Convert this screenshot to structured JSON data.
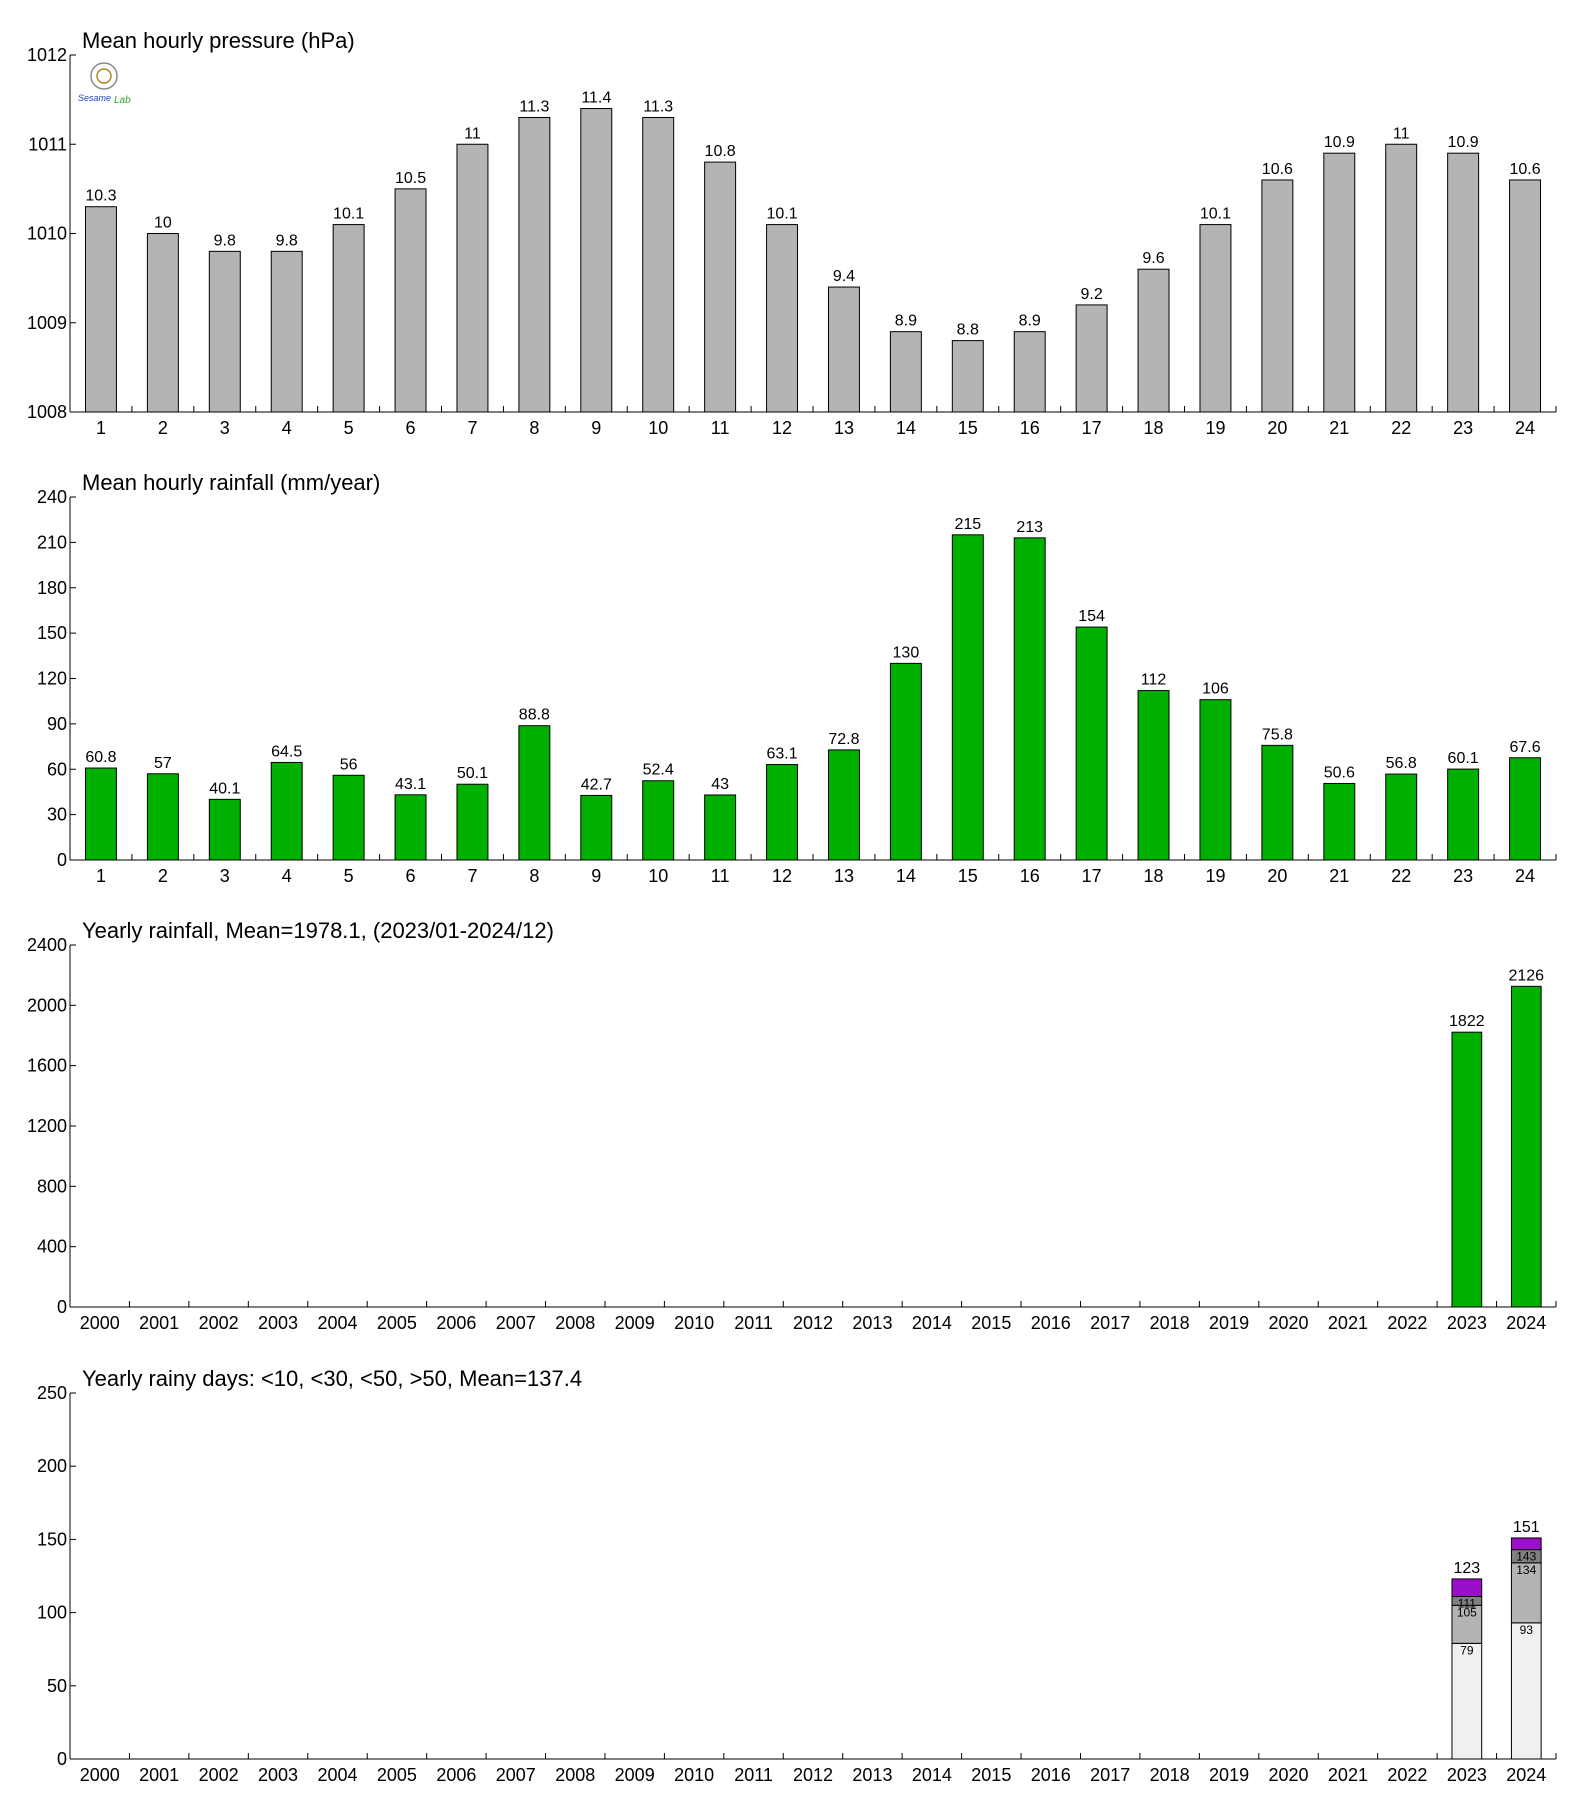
{
  "logo": {
    "text_top": "Sesame",
    "text_bottom": "Lab"
  },
  "chart_data": [
    {
      "type": "bar",
      "title": "Mean hourly pressure (hPa)",
      "categories": [
        "1",
        "2",
        "3",
        "4",
        "5",
        "6",
        "7",
        "8",
        "9",
        "10",
        "11",
        "12",
        "13",
        "14",
        "15",
        "16",
        "17",
        "18",
        "19",
        "20",
        "21",
        "22",
        "23",
        "24"
      ],
      "values": [
        1010.3,
        1010.0,
        1009.8,
        1009.8,
        1010.1,
        1010.5,
        1011.0,
        1011.3,
        1011.4,
        1011.3,
        1010.8,
        1010.1,
        1009.4,
        1008.9,
        1008.8,
        1008.9,
        1009.2,
        1009.6,
        1010.1,
        1010.6,
        1010.9,
        1011.0,
        1010.9,
        1010.6
      ],
      "data_labels": [
        "10.3",
        "10",
        "9.8",
        "9.8",
        "10.1",
        "10.5",
        "11",
        "11.3",
        "11.4",
        "11.3",
        "10.8",
        "10.1",
        "9.4",
        "8.9",
        "8.8",
        "8.9",
        "9.2",
        "9.6",
        "10.1",
        "10.6",
        "10.9",
        "11",
        "10.9",
        "10.6"
      ],
      "ylim": [
        1008,
        1012
      ],
      "yticks": [
        1008,
        1009,
        1010,
        1011,
        1012
      ],
      "color": "#b4b4b4"
    },
    {
      "type": "bar",
      "title": "Mean hourly rainfall (mm/year)",
      "categories": [
        "1",
        "2",
        "3",
        "4",
        "5",
        "6",
        "7",
        "8",
        "9",
        "10",
        "11",
        "12",
        "13",
        "14",
        "15",
        "16",
        "17",
        "18",
        "19",
        "20",
        "21",
        "22",
        "23",
        "24"
      ],
      "values": [
        60.8,
        57,
        40.1,
        64.5,
        56,
        43.1,
        50.1,
        88.8,
        42.7,
        52.4,
        43,
        63.1,
        72.8,
        130,
        215,
        213,
        154,
        112,
        106,
        75.8,
        50.6,
        56.8,
        60.1,
        67.6
      ],
      "data_labels": [
        "60.8",
        "57",
        "40.1",
        "64.5",
        "56",
        "43.1",
        "50.1",
        "88.8",
        "42.7",
        "52.4",
        "43",
        "63.1",
        "72.8",
        "130",
        "215",
        "213",
        "154",
        "112",
        "106",
        "75.8",
        "50.6",
        "56.8",
        "60.1",
        "67.6"
      ],
      "ylim": [
        0,
        240
      ],
      "yticks": [
        0,
        30,
        60,
        90,
        120,
        150,
        180,
        210,
        240
      ],
      "color": "#00b000"
    },
    {
      "type": "bar",
      "title": "Yearly rainfall, Mean=1978.1, (2023/01-2024/12)",
      "categories": [
        "2000",
        "2001",
        "2002",
        "2003",
        "2004",
        "2005",
        "2006",
        "2007",
        "2008",
        "2009",
        "2010",
        "2011",
        "2012",
        "2013",
        "2014",
        "2015",
        "2016",
        "2017",
        "2018",
        "2019",
        "2020",
        "2021",
        "2022",
        "2023",
        "2024"
      ],
      "values": [
        null,
        null,
        null,
        null,
        null,
        null,
        null,
        null,
        null,
        null,
        null,
        null,
        null,
        null,
        null,
        null,
        null,
        null,
        null,
        null,
        null,
        null,
        null,
        1822,
        2126
      ],
      "data_labels": [
        "",
        "",
        "",
        "",
        "",
        "",
        "",
        "",
        "",
        "",
        "",
        "",
        "",
        "",
        "",
        "",
        "",
        "",
        "",
        "",
        "",
        "",
        "",
        "1822",
        "2126"
      ],
      "ylim": [
        0,
        2400
      ],
      "yticks": [
        0,
        400,
        800,
        1200,
        1600,
        2000,
        2400
      ],
      "color": "#00b000"
    },
    {
      "type": "stacked_bar",
      "title": "Yearly rainy days: <10, <30, <50, >50, Mean=137.4",
      "categories": [
        "2000",
        "2001",
        "2002",
        "2003",
        "2004",
        "2005",
        "2006",
        "2007",
        "2008",
        "2009",
        "2010",
        "2011",
        "2012",
        "2013",
        "2014",
        "2015",
        "2016",
        "2017",
        "2018",
        "2019",
        "2020",
        "2021",
        "2022",
        "2023",
        "2024"
      ],
      "ylim": [
        0,
        250
      ],
      "yticks": [
        0,
        50,
        100,
        150,
        200,
        250
      ],
      "series": [
        {
          "cumulative": [
            null,
            null,
            null,
            null,
            null,
            null,
            null,
            null,
            null,
            null,
            null,
            null,
            null,
            null,
            null,
            null,
            null,
            null,
            null,
            null,
            null,
            null,
            null,
            79,
            93
          ],
          "labels": [
            "",
            "",
            "",
            "",
            "",
            "",
            "",
            "",
            "",
            "",
            "",
            "",
            "",
            "",
            "",
            "",
            "",
            "",
            "",
            "",
            "",
            "",
            "",
            "79",
            "93"
          ],
          "color": "#f0f0f0"
        },
        {
          "cumulative": [
            null,
            null,
            null,
            null,
            null,
            null,
            null,
            null,
            null,
            null,
            null,
            null,
            null,
            null,
            null,
            null,
            null,
            null,
            null,
            null,
            null,
            null,
            null,
            105,
            134
          ],
          "labels": [
            "",
            "",
            "",
            "",
            "",
            "",
            "",
            "",
            "",
            "",
            "",
            "",
            "",
            "",
            "",
            "",
            "",
            "",
            "",
            "",
            "",
            "",
            "",
            "105",
            "134"
          ],
          "color": "#b4b4b4"
        },
        {
          "cumulative": [
            null,
            null,
            null,
            null,
            null,
            null,
            null,
            null,
            null,
            null,
            null,
            null,
            null,
            null,
            null,
            null,
            null,
            null,
            null,
            null,
            null,
            null,
            null,
            111,
            143
          ],
          "labels": [
            "",
            "",
            "",
            "",
            "",
            "",
            "",
            "",
            "",
            "",
            "",
            "",
            "",
            "",
            "",
            "",
            "",
            "",
            "",
            "",
            "",
            "",
            "",
            "111",
            "143"
          ],
          "color": "#808080"
        },
        {
          "cumulative": [
            null,
            null,
            null,
            null,
            null,
            null,
            null,
            null,
            null,
            null,
            null,
            null,
            null,
            null,
            null,
            null,
            null,
            null,
            null,
            null,
            null,
            null,
            null,
            123,
            151
          ],
          "labels": [
            "",
            "",
            "",
            "",
            "",
            "",
            "",
            "",
            "",
            "",
            "",
            "",
            "",
            "",
            "",
            "",
            "",
            "",
            "",
            "",
            "",
            "",
            "",
            "123",
            "151"
          ],
          "color": "#9a10c8"
        }
      ]
    }
  ]
}
